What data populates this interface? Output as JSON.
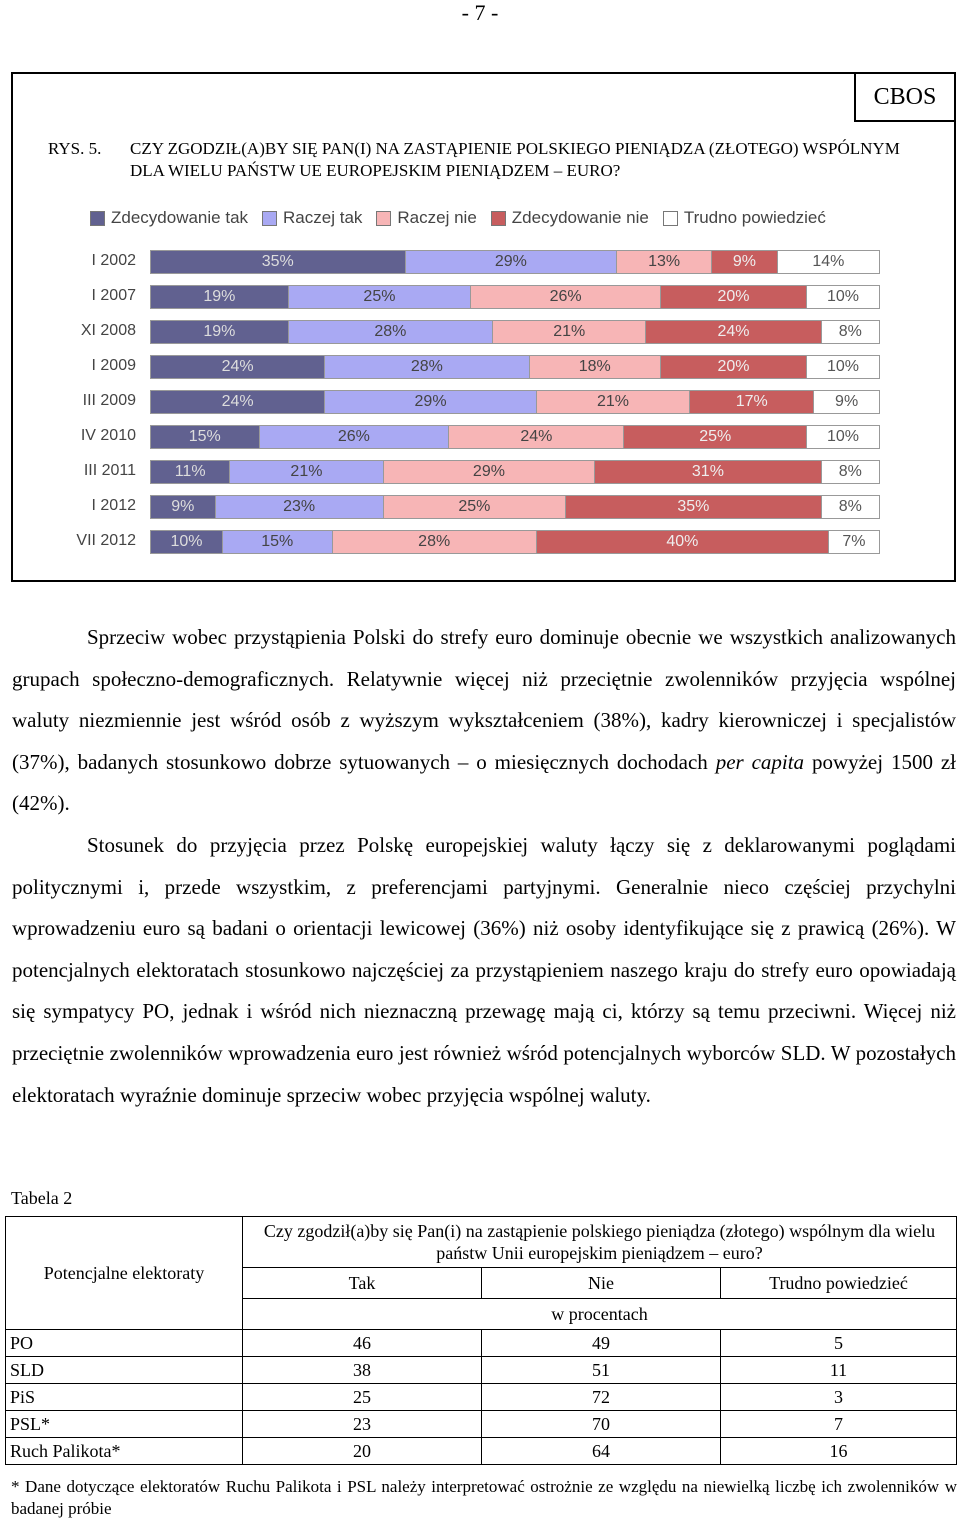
{
  "page_number": "- 7 -",
  "figure": {
    "badge": "CBOS",
    "label": "RYS. 5.",
    "title": "CZY ZGODZIŁ(A)BY SIĘ PAN(I) NA ZASTĄPIENIE POLSKIEGO PIENIĄDZA (ZŁOTEGO) WSPÓLNYM DLA WIELU PAŃSTW UE EUROPEJSKIM PIENIĄDZEM – EURO?"
  },
  "chart_data": {
    "type": "bar",
    "stacked": true,
    "orientation": "horizontal",
    "categories": [
      "I 2002",
      "I 2007",
      "XI 2008",
      "I 2009",
      "III 2009",
      "IV 2010",
      "III 2011",
      "I 2012",
      "VII 2012"
    ],
    "series": [
      {
        "name": "Zdecydowanie tak",
        "color": "#616190",
        "values": [
          35,
          19,
          19,
          24,
          24,
          15,
          11,
          9,
          10
        ]
      },
      {
        "name": "Raczej tak",
        "color": "#a9a9f3",
        "values": [
          29,
          25,
          28,
          28,
          29,
          26,
          21,
          23,
          15
        ]
      },
      {
        "name": "Raczej nie",
        "color": "#f7b5b6",
        "values": [
          13,
          26,
          21,
          18,
          21,
          24,
          29,
          25,
          28
        ]
      },
      {
        "name": "Zdecydowanie nie",
        "color": "#c75d5e",
        "values": [
          9,
          20,
          24,
          20,
          17,
          25,
          31,
          35,
          40
        ]
      },
      {
        "name": "Trudno powiedzieć",
        "color": "#ffffff",
        "values": [
          14,
          10,
          8,
          10,
          9,
          10,
          8,
          8,
          7
        ]
      }
    ],
    "value_suffix": "%",
    "legend_position": "top",
    "grid": false
  },
  "body": {
    "paragraph1": "Sprzeciw wobec przystąpienia Polski do strefy euro dominuje obecnie we wszystkich analizowanych grupach społeczno-demograficznych. Relatywnie więcej niż przeciętnie zwolenników przyjęcia wspólnej waluty niezmiennie jest wśród osób z wyższym wykształceniem (38%), kadry kierowniczej i specjalistów (37%), badanych stosunkowo dobrze sytuowanych – o miesięcznych dochodach ",
    "paragraph1_italic": "per capita",
    "paragraph1_end": " powyżej 1500 zł (42%).",
    "paragraph2": "Stosunek do przyjęcia przez Polskę europejskiej waluty łączy się z deklarowanymi poglądami politycznymi i, przede wszystkim, z preferencjami partyjnymi. Generalnie nieco częściej przychylni wprowadzeniu euro są badani o orientacji lewicowej (36%) niż osoby identyfikujące się z prawicą (26%). W potencjalnych elektoratach stosunkowo najczęściej za przystąpieniem naszego kraju do strefy euro opowiadają się sympatycy PO, jednak i wśród nich nieznaczną przewagę mają ci, którzy są temu przeciwni. Więcej niż przeciętnie zwolenników wprowadzenia euro jest również wśród potencjalnych wyborców SLD. W pozostałych elektoratach wyraźnie dominuje sprzeciw wobec przyjęcia wspólnej waluty."
  },
  "table": {
    "caption": "Tabela 2",
    "row_header": "Potencjalne elektoraty",
    "question": "Czy zgodził(a)by się Pan(i) na zastąpienie polskiego pieniądza (złotego) wspólnym dla wielu państw Unii europejskim pieniądzem – euro?",
    "columns": [
      "Tak",
      "Nie",
      "Trudno powiedzieć"
    ],
    "unit": "w procentach",
    "rows": [
      {
        "name": "PO",
        "values": [
          "46",
          "49",
          "5"
        ]
      },
      {
        "name": "SLD",
        "values": [
          "38",
          "51",
          "11"
        ]
      },
      {
        "name": "PiS",
        "values": [
          "25",
          "72",
          "3"
        ]
      },
      {
        "name": "PSL*",
        "values": [
          "23",
          "70",
          "7"
        ]
      },
      {
        "name": "Ruch Palikota*",
        "values": [
          "20",
          "64",
          "16"
        ]
      }
    ],
    "footnote": "* Dane dotyczące elektoratów Ruchu Palikota i PSL należy interpretować ostrożnie ze względu na niewielką liczbę ich zwolenników w badanej próbie"
  }
}
